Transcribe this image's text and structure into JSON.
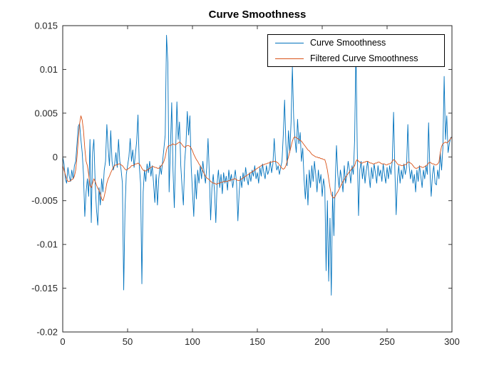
{
  "colors": {
    "series_blue": "#0072BD",
    "series_orange": "#D95319",
    "axis": "#262626",
    "title_text": "#000000",
    "legend_border": "#000000",
    "background": "#ffffff"
  },
  "legend": {
    "items": [
      {
        "label": "Curve Smoothness",
        "color": "#0072BD"
      },
      {
        "label": "Filtered Curve Smoothness",
        "color": "#D95319"
      }
    ]
  },
  "chart_data": {
    "type": "line",
    "title": "Curve Smoothness",
    "xlabel": "",
    "ylabel": "",
    "xlim": [
      0,
      300
    ],
    "ylim": [
      -0.02,
      0.015
    ],
    "xticks": [
      0,
      50,
      100,
      150,
      200,
      250,
      300
    ],
    "yticks": [
      -0.02,
      -0.015,
      -0.01,
      -0.005,
      0,
      0.005,
      0.01,
      0.015
    ],
    "grid": false,
    "box": true,
    "tick_direction": "in",
    "legend_position": "top-right",
    "x_start": 0,
    "x_step": 1,
    "value_scale": 0.0001,
    "series": [
      {
        "name": "Curve Smoothness",
        "color": "#0072BD",
        "values": [
          0,
          -8,
          -25,
          -30,
          -12,
          -22,
          -28,
          -15,
          -25,
          -10,
          -5,
          15,
          35,
          38,
          20,
          5,
          -20,
          -68,
          -40,
          -25,
          -45,
          20,
          -75,
          5,
          20,
          -30,
          -60,
          -78,
          -35,
          -55,
          -25,
          -40,
          -15,
          -5,
          37,
          10,
          -10,
          30,
          -5,
          -15,
          -8,
          5,
          -12,
          20,
          -5,
          -15,
          -30,
          -152,
          -60,
          -20,
          -10,
          0,
          21,
          -5,
          8,
          -12,
          3,
          18,
          48,
          -10,
          -30,
          -145,
          -40,
          -15,
          -28,
          -8,
          -18,
          -5,
          -22,
          -10,
          -30,
          -52,
          -20,
          -55,
          -25,
          -10,
          -20,
          -5,
          10,
          25,
          139,
          108,
          -40,
          10,
          62,
          -15,
          -58,
          5,
          63,
          20,
          40,
          -10,
          -35,
          -55,
          -5,
          15,
          52,
          25,
          47,
          -10,
          -40,
          -68,
          -20,
          -48,
          -15,
          -30,
          -10,
          -25,
          -5,
          -18,
          -30,
          -12,
          21,
          -20,
          -72,
          -35,
          -20,
          -40,
          -75,
          -30,
          -15,
          -35,
          -20,
          -42,
          -18,
          -30,
          -22,
          -38,
          -15,
          -28,
          -20,
          -35,
          -25,
          -15,
          -30,
          -73,
          -40,
          -22,
          -35,
          -18,
          -28,
          -12,
          -25,
          -32,
          -18,
          -28,
          -15,
          -22,
          -10,
          -25,
          -18,
          -30,
          -12,
          -22,
          -8,
          -18,
          -25,
          -10,
          -20,
          -15,
          -5,
          -18,
          -8,
          21,
          -5,
          -15,
          -10,
          -20,
          -12,
          -5,
          25,
          65,
          15,
          -10,
          30,
          5,
          40,
          103,
          45,
          20,
          5,
          43,
          15,
          28,
          -5,
          10,
          -25,
          -48,
          -20,
          -55,
          -15,
          -35,
          -10,
          -28,
          -5,
          -20,
          -40,
          -15,
          -30,
          -20,
          -45,
          -25,
          -35,
          -130,
          -50,
          -142,
          -70,
          -158,
          -40,
          -90,
          -30,
          13,
          -20,
          -35,
          -15,
          -25,
          -40,
          -10,
          -30,
          -20,
          -5,
          -15,
          -30,
          -10,
          -20,
          20,
          125,
          10,
          -67,
          -15,
          -5,
          -25,
          -10,
          -30,
          -15,
          -5,
          -20,
          -35,
          -12,
          -25,
          -8,
          -18,
          -30,
          -10,
          -22,
          -15,
          -28,
          -8,
          -20,
          -30,
          -12,
          -25,
          -10,
          -20,
          -5,
          51,
          -15,
          -66,
          -25,
          -10,
          -30,
          -15,
          -25,
          -8,
          -20,
          -12,
          37,
          -10,
          -25,
          -15,
          -30,
          -20,
          -40,
          -15,
          -28,
          -10,
          -22,
          -35,
          -15,
          -25,
          -10,
          -20,
          39,
          -15,
          -45,
          -20,
          -10,
          -30,
          -32,
          -15,
          -25,
          5,
          -15,
          10,
          92,
          20,
          47,
          5,
          15,
          22,
          23
        ]
      },
      {
        "name": "Filtered Curve Smoothness",
        "color": "#D95319",
        "values": [
          -10,
          -15,
          -20,
          -25,
          -28,
          -28,
          -27,
          -26,
          -25,
          -22,
          -15,
          0,
          20,
          38,
          47,
          42,
          30,
          10,
          -5,
          -10,
          -20,
          -33,
          -35,
          -30,
          -25,
          -28,
          -32,
          -36,
          -38,
          -42,
          -48,
          -50,
          -45,
          -38,
          -30,
          -25,
          -22,
          -18,
          -15,
          -12,
          -10,
          -9,
          -9,
          -8,
          -8,
          -9,
          -10,
          -12,
          -14,
          -15,
          -14,
          -13,
          -12,
          -10,
          -10,
          -9,
          -8,
          -8,
          -7,
          -8,
          -10,
          -13,
          -15,
          -16,
          -16,
          -15,
          -14,
          -13,
          -12,
          -11,
          -11,
          -12,
          -12,
          -13,
          -13,
          -12,
          -10,
          -8,
          -5,
          0,
          8,
          12,
          13,
          13,
          14,
          15,
          14,
          14,
          15,
          16,
          17,
          16,
          14,
          12,
          11,
          12,
          13,
          13,
          12,
          10,
          7,
          3,
          0,
          -3,
          -5,
          -8,
          -10,
          -13,
          -16,
          -19,
          -22,
          -24,
          -25,
          -26,
          -28,
          -29,
          -30,
          -30,
          -31,
          -31,
          -30,
          -30,
          -29,
          -29,
          -28,
          -28,
          -28,
          -28,
          -27,
          -27,
          -26,
          -26,
          -25,
          -25,
          -26,
          -27,
          -27,
          -26,
          -25,
          -24,
          -23,
          -22,
          -21,
          -20,
          -19,
          -18,
          -17,
          -16,
          -15,
          -14,
          -13,
          -12,
          -11,
          -10,
          -9,
          -9,
          -8,
          -8,
          -7,
          -7,
          -6,
          -6,
          -5,
          -5,
          -5,
          -6,
          -7,
          -9,
          -11,
          -13,
          -14,
          -13,
          -10,
          -5,
          0,
          6,
          12,
          18,
          22,
          23,
          22,
          21,
          20,
          19,
          18,
          16,
          14,
          12,
          10,
          8,
          7,
          5,
          3,
          2,
          1,
          0,
          0,
          -1,
          -1,
          -2,
          -2,
          -3,
          -3,
          -8,
          -15,
          -25,
          -35,
          -43,
          -46,
          -47,
          -45,
          -42,
          -40,
          -37,
          -34,
          -31,
          -28,
          -26,
          -23,
          -21,
          -19,
          -17,
          -15,
          -13,
          -12,
          -10,
          -5,
          -3,
          -5,
          -6,
          -7,
          -7,
          -6,
          -6,
          -5,
          -5,
          -6,
          -7,
          -7,
          -8,
          -8,
          -7,
          -7,
          -6,
          -6,
          -7,
          -8,
          -8,
          -8,
          -9,
          -9,
          -8,
          -8,
          -7,
          -5,
          -3,
          -4,
          -6,
          -8,
          -9,
          -9,
          -10,
          -10,
          -9,
          -9,
          -8,
          -6,
          -6,
          -7,
          -8,
          -10,
          -12,
          -13,
          -13,
          -12,
          -11,
          -11,
          -12,
          -12,
          -11,
          -10,
          -9,
          -7,
          -6,
          -7,
          -8,
          -8,
          -9,
          -9,
          -8,
          -6,
          5,
          12,
          15,
          16,
          17,
          16,
          17,
          19,
          21,
          23
        ]
      }
    ]
  }
}
